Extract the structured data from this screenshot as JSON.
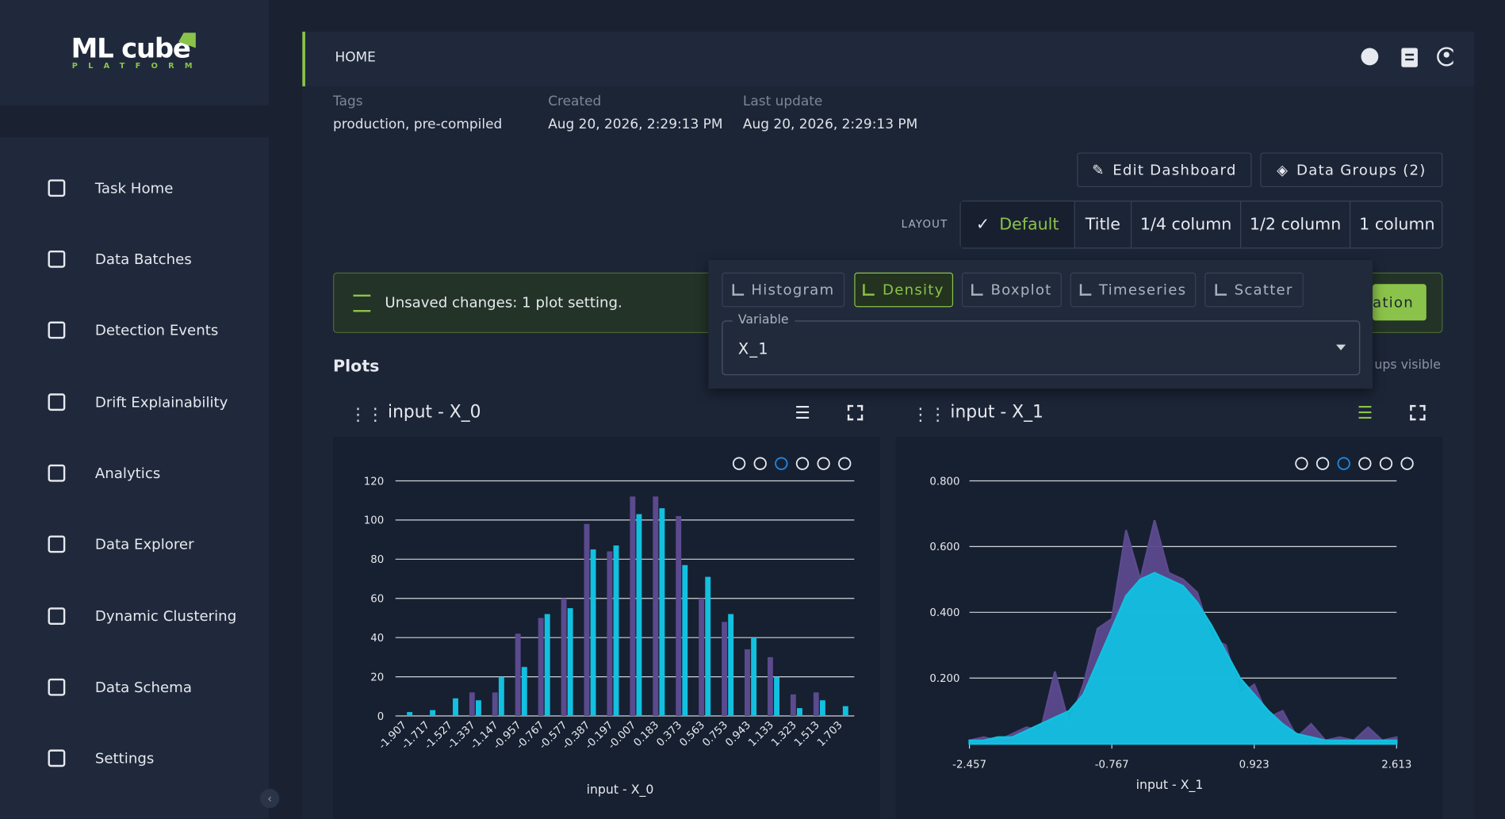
{
  "logo": {
    "name": "ML cube",
    "sub": "PLATFORM"
  },
  "nav": [
    "Task Home",
    "Data Batches",
    "Detection Events",
    "Drift Explainability",
    "Analytics",
    "Data Explorer",
    "Dynamic Clustering",
    "Data Schema",
    "Settings"
  ],
  "header": {
    "title": "HOME"
  },
  "meta": [
    {
      "label": "Tags",
      "value": "production, pre-compiled"
    },
    {
      "label": "Created",
      "value": "Aug 20, 2026, 2:29:13 PM"
    },
    {
      "label": "Last update",
      "value": "Aug 20, 2026, 2:29:13 PM"
    }
  ],
  "buttons": [
    "Edit Dashboard",
    "Data Groups (2)"
  ],
  "layout": {
    "label": "LAYOUT",
    "options": [
      "Default",
      "Title",
      "1/4 column",
      "1/2 column",
      "1 column"
    ]
  },
  "notice": {
    "text": "Unsaved changes: 1 plot setting.",
    "action": "ation"
  },
  "plots_title": "Plots",
  "groups_note": "ups visible",
  "popover": {
    "tabs": [
      "Histogram",
      "Density",
      "Boxplot",
      "Timeseries",
      "Scatter"
    ],
    "variable_label": "Variable",
    "variable_value": "X_1"
  },
  "plot_titles": [
    "input - X_0",
    "input - X_1"
  ],
  "chart_data": [
    {
      "type": "bar",
      "x_label": "input - X_0",
      "categories": [
        "-1.907",
        "-1.717",
        "-1.527",
        "-1.337",
        "-1.147",
        "-0.957",
        "-0.767",
        "-0.577",
        "-0.387",
        "-0.197",
        "-0.007",
        "0.183",
        "0.373",
        "0.563",
        "0.753",
        "0.943",
        "1.133",
        "1.323",
        "1.513",
        "1.703"
      ],
      "series": [
        {
          "color": "#5b4a8e",
          "values": [
            0,
            0,
            0,
            12,
            12,
            42,
            50,
            60,
            98,
            84,
            112,
            112,
            102,
            60,
            48,
            34,
            30,
            11,
            12,
            0
          ]
        },
        {
          "color": "#12c0e0",
          "values": [
            2,
            3,
            9,
            8,
            20,
            25,
            52,
            55,
            85,
            87,
            103,
            106,
            77,
            71,
            52,
            40,
            20,
            4,
            8,
            5
          ]
        }
      ],
      "ylim": [
        0,
        120
      ],
      "yticks": [
        0,
        20,
        40,
        60,
        80,
        100,
        120
      ],
      "grid": true
    },
    {
      "type": "area",
      "x_label": "input - X_1",
      "x": [
        -2.457,
        -2.288,
        -2.119,
        -1.95,
        -1.781,
        -1.612,
        -1.443,
        -1.274,
        -1.105,
        -0.936,
        -0.767,
        -0.598,
        -0.429,
        -0.26,
        -0.091,
        0.078,
        0.247,
        0.416,
        0.585,
        0.754,
        0.923,
        1.092,
        1.261,
        1.43,
        1.599,
        1.768,
        1.937,
        2.106,
        2.275,
        2.444,
        2.613
      ],
      "series": [
        {
          "color": "#5b4a8e",
          "values": [
            0.01,
            0.02,
            0.01,
            0.03,
            0.05,
            0.04,
            0.22,
            0.06,
            0.18,
            0.35,
            0.38,
            0.65,
            0.5,
            0.68,
            0.52,
            0.5,
            0.46,
            0.32,
            0.3,
            0.15,
            0.18,
            0.08,
            0.1,
            0.02,
            0.06,
            0.01,
            0.02,
            0.01,
            0.05,
            0.01,
            0.02
          ]
        },
        {
          "color": "#12c0e0",
          "values": [
            0.01,
            0.01,
            0.02,
            0.02,
            0.04,
            0.06,
            0.08,
            0.1,
            0.15,
            0.25,
            0.35,
            0.45,
            0.5,
            0.52,
            0.5,
            0.48,
            0.43,
            0.36,
            0.28,
            0.2,
            0.15,
            0.1,
            0.06,
            0.03,
            0.02,
            0.01,
            0.01,
            0.01,
            0.01,
            0.01,
            0.01
          ]
        }
      ],
      "xlim": [
        -2.457,
        2.613
      ],
      "xticks": [
        -2.457,
        -0.767,
        0.923,
        2.613
      ],
      "ylim": [
        0,
        0.8
      ],
      "yticks": [
        {
          "value": 0.2,
          "label": "0.200"
        },
        {
          "value": 0.4,
          "label": "0.400"
        },
        {
          "value": 0.6,
          "label": "0.600"
        },
        {
          "value": 0.8,
          "label": "0.800"
        }
      ],
      "grid": true
    }
  ]
}
